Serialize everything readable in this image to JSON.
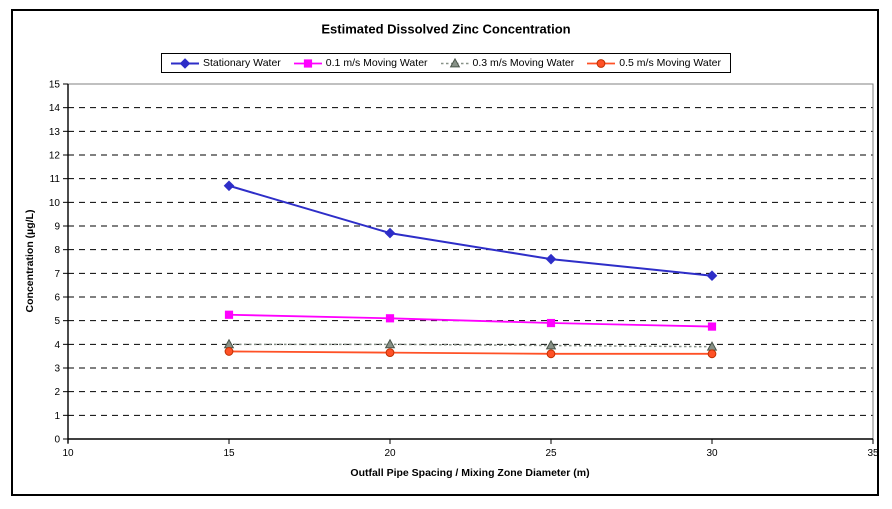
{
  "chart_data": {
    "type": "line",
    "title": "Estimated Dissolved Zinc Concentration",
    "xlabel": "Outfall Pipe Spacing / Mixing Zone Diameter (m)",
    "ylabel": "Concentration (µg/L)",
    "xlim": [
      10,
      35
    ],
    "ylim": [
      0,
      15
    ],
    "x_ticks": [
      10,
      15,
      20,
      25,
      30,
      35
    ],
    "y_ticks": [
      0,
      1,
      2,
      3,
      4,
      5,
      6,
      7,
      8,
      9,
      10,
      11,
      12,
      13,
      14,
      15
    ],
    "grid": "horizontal dashed black",
    "legend_position": "top-center",
    "x": [
      15,
      20,
      25,
      30
    ],
    "series": [
      {
        "name": "Stationary Water",
        "values": [
          10.7,
          8.7,
          7.6,
          6.9
        ],
        "color": "#2E2EC8",
        "edge": "#2E2EC8",
        "marker": "diamond",
        "line_style": "solid",
        "line_width": 2
      },
      {
        "name": "0.1 m/s Moving Water",
        "values": [
          5.25,
          5.1,
          4.9,
          4.75
        ],
        "color": "#FF00FF",
        "edge": "#FF00FF",
        "marker": "square",
        "line_style": "solid",
        "line_width": 1.8
      },
      {
        "name": "0.3 m/s Moving Water",
        "values": [
          4.0,
          4.0,
          3.95,
          3.9
        ],
        "color": "#879187",
        "edge": "#4A554A",
        "marker": "triangle",
        "line_style": "dotted",
        "line_width": 1.5
      },
      {
        "name": "0.5 m/s Moving Water",
        "values": [
          3.7,
          3.65,
          3.6,
          3.6
        ],
        "color": "#FF5126",
        "edge": "#C03000",
        "marker": "circle",
        "line_style": "solid",
        "line_width": 1.8
      }
    ]
  }
}
